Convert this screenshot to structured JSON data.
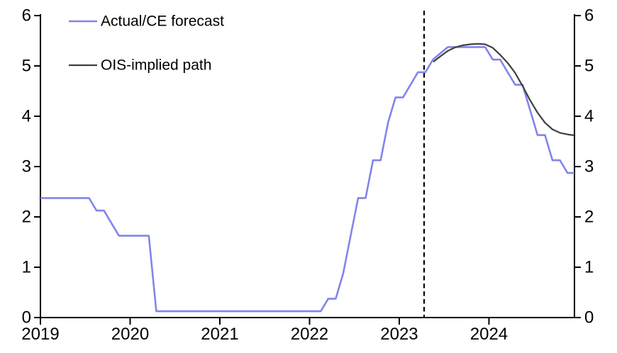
{
  "chart_data": {
    "type": "line",
    "title": "",
    "xlabel": "",
    "ylabel": "",
    "background": "#ffffff",
    "axis_color": "#000000",
    "grid": false,
    "legend_position": "top-left",
    "x_axis": {
      "range": [
        2019,
        2024.953
      ],
      "ticks": [
        2019,
        2020,
        2021,
        2022,
        2023,
        2024
      ],
      "tick_labels": [
        "2019",
        "2020",
        "2021",
        "2022",
        "2023",
        "2024"
      ]
    },
    "y_axis_left": {
      "range": [
        0,
        6
      ],
      "ticks": [
        0,
        1,
        2,
        3,
        4,
        5,
        6
      ],
      "tick_labels": [
        "0",
        "1",
        "2",
        "3",
        "4",
        "5",
        "6"
      ]
    },
    "y_axis_right": {
      "range": [
        0,
        6
      ],
      "ticks": [
        0,
        1,
        2,
        3,
        4,
        5,
        6
      ],
      "tick_labels": [
        "0",
        "1",
        "2",
        "3",
        "4",
        "5",
        "6"
      ]
    },
    "forecast_divider": {
      "x": 2023.277,
      "style": "dashed",
      "color": "#000000"
    },
    "series": [
      {
        "name": "Actual/CE forecast",
        "color": "#8185ea",
        "width": 2.6,
        "points": [
          [
            2019.0,
            2.375
          ],
          [
            2019.042,
            2.375
          ],
          [
            2019.125,
            2.375
          ],
          [
            2019.208,
            2.375
          ],
          [
            2019.292,
            2.375
          ],
          [
            2019.375,
            2.375
          ],
          [
            2019.458,
            2.375
          ],
          [
            2019.542,
            2.375
          ],
          [
            2019.625,
            2.125
          ],
          [
            2019.708,
            2.125
          ],
          [
            2019.792,
            1.875
          ],
          [
            2019.875,
            1.625
          ],
          [
            2019.958,
            1.625
          ],
          [
            2020.042,
            1.625
          ],
          [
            2020.125,
            1.625
          ],
          [
            2020.208,
            1.625
          ],
          [
            2020.292,
            0.125
          ],
          [
            2020.375,
            0.125
          ],
          [
            2020.458,
            0.125
          ],
          [
            2020.542,
            0.125
          ],
          [
            2020.625,
            0.125
          ],
          [
            2020.708,
            0.125
          ],
          [
            2020.792,
            0.125
          ],
          [
            2020.875,
            0.125
          ],
          [
            2020.958,
            0.125
          ],
          [
            2021.042,
            0.125
          ],
          [
            2021.125,
            0.125
          ],
          [
            2021.208,
            0.125
          ],
          [
            2021.292,
            0.125
          ],
          [
            2021.375,
            0.125
          ],
          [
            2021.458,
            0.125
          ],
          [
            2021.542,
            0.125
          ],
          [
            2021.625,
            0.125
          ],
          [
            2021.708,
            0.125
          ],
          [
            2021.792,
            0.125
          ],
          [
            2021.875,
            0.125
          ],
          [
            2021.958,
            0.125
          ],
          [
            2022.042,
            0.125
          ],
          [
            2022.125,
            0.125
          ],
          [
            2022.208,
            0.375
          ],
          [
            2022.292,
            0.375
          ],
          [
            2022.375,
            0.875
          ],
          [
            2022.458,
            1.625
          ],
          [
            2022.542,
            2.375
          ],
          [
            2022.625,
            2.375
          ],
          [
            2022.708,
            3.125
          ],
          [
            2022.792,
            3.125
          ],
          [
            2022.875,
            3.875
          ],
          [
            2022.958,
            4.375
          ],
          [
            2023.042,
            4.375
          ],
          [
            2023.125,
            4.625
          ],
          [
            2023.208,
            4.875
          ],
          [
            2023.292,
            4.875
          ],
          [
            2023.375,
            5.125
          ],
          [
            2023.458,
            5.25
          ],
          [
            2023.542,
            5.375
          ],
          [
            2023.625,
            5.375
          ],
          [
            2023.708,
            5.375
          ],
          [
            2023.792,
            5.375
          ],
          [
            2023.875,
            5.375
          ],
          [
            2023.958,
            5.375
          ],
          [
            2024.042,
            5.125
          ],
          [
            2024.125,
            5.125
          ],
          [
            2024.208,
            4.875
          ],
          [
            2024.292,
            4.625
          ],
          [
            2024.375,
            4.625
          ],
          [
            2024.458,
            4.125
          ],
          [
            2024.542,
            3.625
          ],
          [
            2024.625,
            3.625
          ],
          [
            2024.708,
            3.125
          ],
          [
            2024.792,
            3.125
          ],
          [
            2024.875,
            2.875
          ],
          [
            2024.953,
            2.875
          ]
        ]
      },
      {
        "name": "OIS-implied path",
        "color": "#404040",
        "width": 2.2,
        "points": [
          [
            2023.38,
            5.08
          ],
          [
            2023.458,
            5.19
          ],
          [
            2023.542,
            5.3
          ],
          [
            2023.625,
            5.37
          ],
          [
            2023.708,
            5.41
          ],
          [
            2023.792,
            5.43
          ],
          [
            2023.875,
            5.44
          ],
          [
            2023.958,
            5.43
          ],
          [
            2024.042,
            5.36
          ],
          [
            2024.125,
            5.22
          ],
          [
            2024.208,
            5.06
          ],
          [
            2024.292,
            4.86
          ],
          [
            2024.375,
            4.6
          ],
          [
            2024.458,
            4.32
          ],
          [
            2024.542,
            4.07
          ],
          [
            2024.625,
            3.87
          ],
          [
            2024.708,
            3.74
          ],
          [
            2024.792,
            3.67
          ],
          [
            2024.875,
            3.64
          ],
          [
            2024.953,
            3.62
          ]
        ]
      }
    ]
  }
}
